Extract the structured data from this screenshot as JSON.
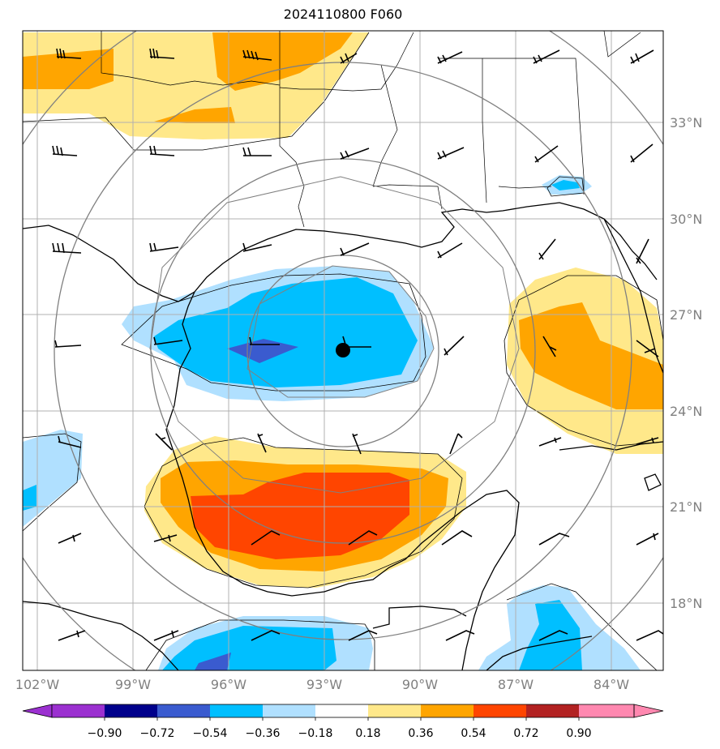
{
  "title": "2024110800 F060",
  "map": {
    "lon_range": [
      -102.5,
      -82.5
    ],
    "lat_range": [
      15.6,
      35.7
    ],
    "lon_ticks": [
      "102°W",
      "99°W",
      "96°W",
      "93°W",
      "90°W",
      "87°W",
      "84°W"
    ],
    "lat_ticks": [
      "18°N",
      "21°N",
      "24°N",
      "27°N",
      "30°N",
      "33°N"
    ],
    "storm_center": {
      "lon": -92.3,
      "lat": 25.9
    },
    "range_rings": "concentric circles around storm center",
    "grid": true
  },
  "colorbar": {
    "levels": [
      "−0.90",
      "−0.72",
      "−0.54",
      "−0.36",
      "−0.18",
      "0.18",
      "0.36",
      "0.54",
      "0.72",
      "0.90"
    ],
    "colors": [
      "#9b30d0",
      "#00008b",
      "#3a5bcf",
      "#00bfff",
      "#b0e0ff",
      "#ffffff",
      "#ffe88a",
      "#ffa500",
      "#ff4500",
      "#b22222",
      "#ff88b0"
    ],
    "extend": "both"
  },
  "legend_colors": {
    "light_blue": "#b0e0ff",
    "blue": "#00bfff",
    "dark_blue": "#3a5bcf",
    "light_yellow": "#ffe88a",
    "orange": "#ffa500",
    "red_orange": "#ff4500"
  }
}
